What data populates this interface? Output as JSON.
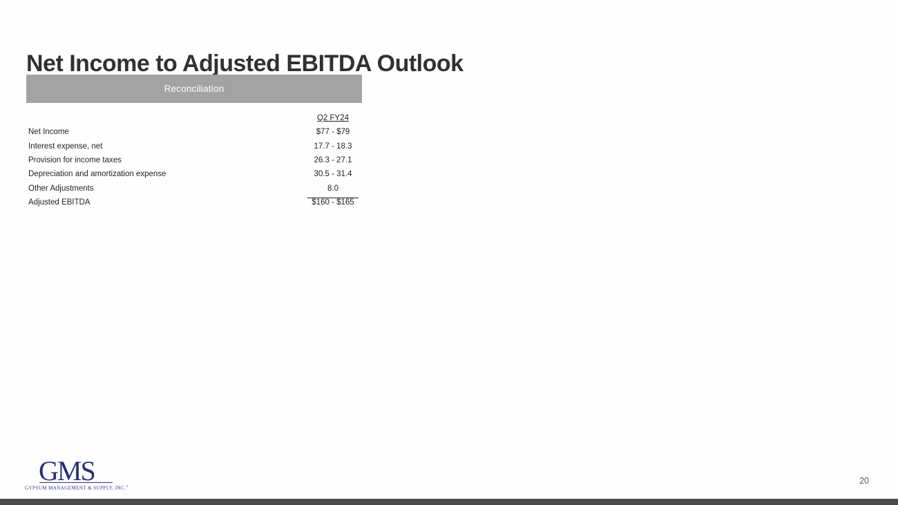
{
  "slide": {
    "title": "Net Income to Adjusted EBITDA Outlook",
    "section_header": "Reconciliation",
    "page_number": "20"
  },
  "table": {
    "column_header": "Q2 FY24",
    "rows": [
      {
        "label": "Net Income",
        "value": "$77 - $79"
      },
      {
        "label": "Interest expense, net",
        "value": "17.7 - 18.3"
      },
      {
        "label": "Provision for income taxes",
        "value": "26.3 - 27.1"
      },
      {
        "label": "Depreciation and amortization expense",
        "value": "30.5 - 31.4"
      },
      {
        "label": "Other Adjustments",
        "value": "8.0"
      },
      {
        "label": "Adjusted EBITDA",
        "value": "$160 - $165"
      }
    ]
  },
  "logo": {
    "text": "GMS",
    "tagline": "GYPSUM MANAGEMENT & SUPPLY, INC.",
    "registered_mark": "®"
  },
  "colors": {
    "section_header_bg": "#a3a4a2",
    "logo_navy": "#283173",
    "bottom_bar": "#4a4b4a",
    "title_text": "#313131",
    "table_text": "#222222",
    "page_number_text": "#595959"
  }
}
